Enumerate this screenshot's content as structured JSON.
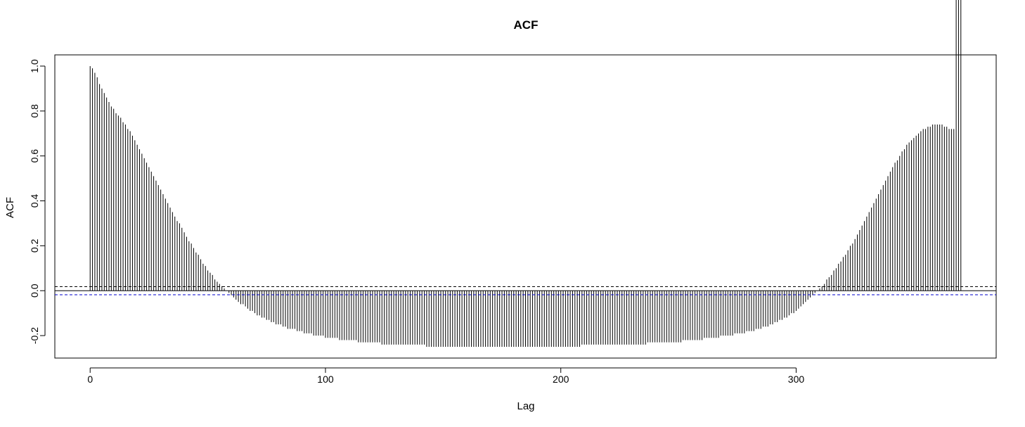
{
  "chart_data": {
    "type": "bar",
    "title": "ACF",
    "xlabel": "Lag",
    "ylabel": "ACF",
    "xlim": [
      -15,
      385
    ],
    "ylim": [
      -0.3,
      1.05
    ],
    "x_ticks": [
      0,
      100,
      200,
      300
    ],
    "x_tick_labels": [
      "0",
      "100",
      "200",
      "300"
    ],
    "y_ticks": [
      -0.2,
      0.0,
      0.2,
      0.4,
      0.6,
      0.8,
      1.0
    ],
    "y_tick_labels": [
      "-0.2",
      "0.0",
      "0.2",
      "0.4",
      "0.6",
      "0.8",
      "1.0"
    ],
    "grid": false,
    "confidence_band": 0.018,
    "colors": {
      "bars": "#000000",
      "upper_ci": "#000000",
      "lower_ci": "#0000cc",
      "zero_line": "#000000"
    },
    "lags": [
      0,
      1,
      2,
      3,
      4,
      5,
      6,
      7,
      8,
      9,
      10,
      11,
      12,
      13,
      14,
      15,
      16,
      17,
      18,
      19,
      20,
      21,
      22,
      23,
      24,
      25,
      26,
      27,
      28,
      29,
      30,
      31,
      32,
      33,
      34,
      35,
      36,
      37,
      38,
      39,
      40,
      41,
      42,
      43,
      44,
      45,
      46,
      47,
      48,
      49,
      50,
      51,
      52,
      53,
      54,
      55,
      56,
      57,
      58,
      59,
      60,
      61,
      62,
      63,
      64,
      65,
      66,
      67,
      68,
      69,
      70,
      71,
      72,
      73,
      74,
      75,
      76,
      77,
      78,
      79,
      80,
      81,
      82,
      83,
      84,
      85,
      86,
      87,
      88,
      89,
      90,
      91,
      92,
      93,
      94,
      95,
      96,
      97,
      98,
      99,
      100,
      101,
      102,
      103,
      104,
      105,
      106,
      107,
      108,
      109,
      110,
      111,
      112,
      113,
      114,
      115,
      116,
      117,
      118,
      119,
      120,
      121,
      122,
      123,
      124,
      125,
      126,
      127,
      128,
      129,
      130,
      131,
      132,
      133,
      134,
      135,
      136,
      137,
      138,
      139,
      140,
      141,
      142,
      143,
      144,
      145,
      146,
      147,
      148,
      149,
      150,
      151,
      152,
      153,
      154,
      155,
      156,
      157,
      158,
      159,
      160,
      161,
      162,
      163,
      164,
      165,
      166,
      167,
      168,
      169,
      170,
      171,
      172,
      173,
      174,
      175,
      176,
      177,
      178,
      179,
      180,
      181,
      182,
      183,
      184,
      185,
      186,
      187,
      188,
      189,
      190,
      191,
      192,
      193,
      194,
      195,
      196,
      197,
      198,
      199,
      200,
      201,
      202,
      203,
      204,
      205,
      206,
      207,
      208,
      209,
      210,
      211,
      212,
      213,
      214,
      215,
      216,
      217,
      218,
      219,
      220,
      221,
      222,
      223,
      224,
      225,
      226,
      227,
      228,
      229,
      230,
      231,
      232,
      233,
      234,
      235,
      236,
      237,
      238,
      239,
      240,
      241,
      242,
      243,
      244,
      245,
      246,
      247,
      248,
      249,
      250,
      251,
      252,
      253,
      254,
      255,
      256,
      257,
      258,
      259,
      260,
      261,
      262,
      263,
      264,
      265,
      266,
      267,
      268,
      269,
      270,
      271,
      272,
      273,
      274,
      275,
      276,
      277,
      278,
      279,
      280,
      281,
      282,
      283,
      284,
      285,
      286,
      287,
      288,
      289,
      290,
      291,
      292,
      293,
      294,
      295,
      296,
      297,
      298,
      299,
      300,
      301,
      302,
      303,
      304,
      305,
      306,
      307,
      308,
      309,
      310,
      311,
      312,
      313,
      314,
      315,
      316,
      317,
      318,
      319,
      320,
      321,
      322,
      323,
      324,
      325,
      326,
      327,
      328,
      329,
      330,
      331,
      332,
      333,
      334,
      335,
      336,
      337,
      338,
      339,
      340,
      341,
      342,
      343,
      344,
      345,
      346,
      347,
      348,
      349,
      350,
      351,
      352,
      353,
      354,
      355,
      356,
      357,
      358,
      359,
      360,
      361,
      362,
      363,
      364,
      365,
      366,
      367,
      368,
      369,
      370
    ],
    "values": [
      1.0,
      0.99,
      0.97,
      0.95,
      0.92,
      0.9,
      0.88,
      0.86,
      0.84,
      0.82,
      0.81,
      0.79,
      0.78,
      0.77,
      0.75,
      0.74,
      0.72,
      0.71,
      0.69,
      0.67,
      0.65,
      0.63,
      0.61,
      0.59,
      0.57,
      0.55,
      0.53,
      0.51,
      0.49,
      0.47,
      0.45,
      0.43,
      0.41,
      0.39,
      0.37,
      0.35,
      0.33,
      0.31,
      0.3,
      0.28,
      0.26,
      0.24,
      0.22,
      0.21,
      0.19,
      0.17,
      0.16,
      0.14,
      0.12,
      0.11,
      0.09,
      0.08,
      0.07,
      0.05,
      0.04,
      0.03,
      0.02,
      0.01,
      0.0,
      -0.01,
      -0.02,
      -0.03,
      -0.04,
      -0.05,
      -0.06,
      -0.06,
      -0.07,
      -0.08,
      -0.09,
      -0.09,
      -0.1,
      -0.11,
      -0.11,
      -0.12,
      -0.12,
      -0.13,
      -0.13,
      -0.14,
      -0.14,
      -0.15,
      -0.15,
      -0.15,
      -0.16,
      -0.16,
      -0.17,
      -0.17,
      -0.17,
      -0.17,
      -0.18,
      -0.18,
      -0.18,
      -0.19,
      -0.19,
      -0.19,
      -0.19,
      -0.2,
      -0.2,
      -0.2,
      -0.2,
      -0.2,
      -0.21,
      -0.21,
      -0.21,
      -0.21,
      -0.21,
      -0.21,
      -0.22,
      -0.22,
      -0.22,
      -0.22,
      -0.22,
      -0.22,
      -0.22,
      -0.22,
      -0.23,
      -0.23,
      -0.23,
      -0.23,
      -0.23,
      -0.23,
      -0.23,
      -0.23,
      -0.23,
      -0.23,
      -0.24,
      -0.24,
      -0.24,
      -0.24,
      -0.24,
      -0.24,
      -0.24,
      -0.24,
      -0.24,
      -0.24,
      -0.24,
      -0.24,
      -0.24,
      -0.24,
      -0.24,
      -0.24,
      -0.24,
      -0.24,
      -0.24,
      -0.25,
      -0.25,
      -0.25,
      -0.25,
      -0.25,
      -0.25,
      -0.25,
      -0.25,
      -0.25,
      -0.25,
      -0.25,
      -0.25,
      -0.25,
      -0.25,
      -0.25,
      -0.25,
      -0.25,
      -0.25,
      -0.25,
      -0.25,
      -0.25,
      -0.25,
      -0.25,
      -0.25,
      -0.25,
      -0.25,
      -0.25,
      -0.25,
      -0.25,
      -0.25,
      -0.25,
      -0.25,
      -0.25,
      -0.25,
      -0.25,
      -0.25,
      -0.25,
      -0.25,
      -0.25,
      -0.25,
      -0.25,
      -0.25,
      -0.25,
      -0.25,
      -0.25,
      -0.25,
      -0.25,
      -0.25,
      -0.25,
      -0.25,
      -0.25,
      -0.25,
      -0.25,
      -0.25,
      -0.25,
      -0.25,
      -0.25,
      -0.25,
      -0.25,
      -0.25,
      -0.25,
      -0.25,
      -0.25,
      -0.25,
      -0.25,
      -0.25,
      -0.24,
      -0.24,
      -0.24,
      -0.24,
      -0.24,
      -0.24,
      -0.24,
      -0.24,
      -0.24,
      -0.24,
      -0.24,
      -0.24,
      -0.24,
      -0.24,
      -0.24,
      -0.24,
      -0.24,
      -0.24,
      -0.24,
      -0.24,
      -0.24,
      -0.24,
      -0.24,
      -0.24,
      -0.24,
      -0.24,
      -0.24,
      -0.24,
      -0.23,
      -0.23,
      -0.23,
      -0.23,
      -0.23,
      -0.23,
      -0.23,
      -0.23,
      -0.23,
      -0.23,
      -0.23,
      -0.23,
      -0.23,
      -0.23,
      -0.23,
      -0.22,
      -0.22,
      -0.22,
      -0.22,
      -0.22,
      -0.22,
      -0.22,
      -0.22,
      -0.22,
      -0.21,
      -0.21,
      -0.21,
      -0.21,
      -0.21,
      -0.21,
      -0.21,
      -0.2,
      -0.2,
      -0.2,
      -0.2,
      -0.2,
      -0.2,
      -0.19,
      -0.19,
      -0.19,
      -0.19,
      -0.19,
      -0.18,
      -0.18,
      -0.18,
      -0.18,
      -0.17,
      -0.17,
      -0.17,
      -0.16,
      -0.16,
      -0.16,
      -0.15,
      -0.15,
      -0.14,
      -0.14,
      -0.13,
      -0.13,
      -0.12,
      -0.12,
      -0.11,
      -0.1,
      -0.1,
      -0.09,
      -0.08,
      -0.07,
      -0.06,
      -0.05,
      -0.04,
      -0.03,
      -0.02,
      -0.01,
      0.0,
      0.01,
      0.02,
      0.03,
      0.05,
      0.06,
      0.07,
      0.09,
      0.1,
      0.12,
      0.13,
      0.15,
      0.16,
      0.18,
      0.2,
      0.21,
      0.23,
      0.25,
      0.27,
      0.29,
      0.31,
      0.33,
      0.35,
      0.37,
      0.39,
      0.41,
      0.43,
      0.45,
      0.47,
      0.49,
      0.51,
      0.53,
      0.55,
      0.57,
      0.58,
      0.6,
      0.62,
      0.63,
      0.65,
      0.66,
      0.67,
      0.68,
      0.69,
      0.7,
      0.71,
      0.72,
      0.72,
      0.73,
      0.73,
      0.74,
      0.74,
      0.74,
      0.74,
      0.74,
      0.73,
      0.73,
      0.72,
      0.72,
      0.72
    ]
  }
}
